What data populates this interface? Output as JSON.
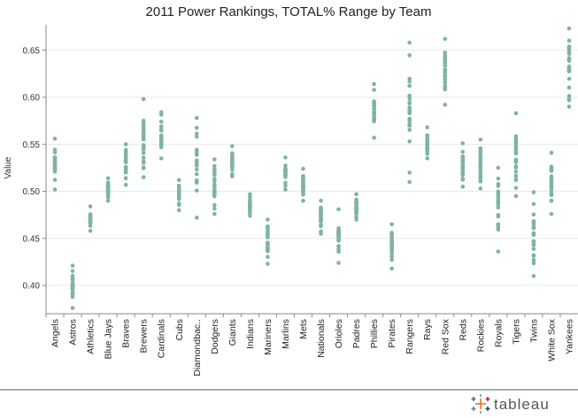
{
  "chart_data": {
    "type": "scatter",
    "title": "2011 Power Rankings, TOTAL% Range by Team",
    "ylabel": "Value",
    "xlabel": "",
    "ylim": [
      0.37,
      0.677
    ],
    "yticks": [
      0.4,
      0.45,
      0.5,
      0.55,
      0.6,
      0.65
    ],
    "ytick_labels": [
      "0.40",
      "0.45",
      "0.50",
      "0.55",
      "0.60",
      "0.65"
    ],
    "grid": "horizontal",
    "categories": [
      "Angels",
      "Astros",
      "Athletics",
      "Blue Jays",
      "Braves",
      "Brewers",
      "Cardinals",
      "Cubs",
      "Diamondbac..",
      "Dodgers",
      "Giants",
      "Indians",
      "Mariners",
      "Marlins",
      "Mets",
      "Nationals",
      "Orioles",
      "Padres",
      "Phillies",
      "Pirates",
      "Rangers",
      "Rays",
      "Red Sox",
      "Reds",
      "Rockies",
      "Royals",
      "Tigers",
      "Twins",
      "White Sox",
      "Yankees"
    ],
    "ranges": [
      [
        0.502,
        0.556
      ],
      [
        0.376,
        0.421
      ],
      [
        0.458,
        0.484
      ],
      [
        0.49,
        0.514
      ],
      [
        0.507,
        0.55
      ],
      [
        0.515,
        0.598
      ],
      [
        0.535,
        0.584
      ],
      [
        0.48,
        0.512
      ],
      [
        0.472,
        0.578
      ],
      [
        0.476,
        0.534
      ],
      [
        0.516,
        0.548
      ],
      [
        0.474,
        0.497
      ],
      [
        0.423,
        0.47
      ],
      [
        0.502,
        0.536
      ],
      [
        0.49,
        0.524
      ],
      [
        0.455,
        0.49
      ],
      [
        0.424,
        0.481
      ],
      [
        0.47,
        0.497
      ],
      [
        0.557,
        0.614
      ],
      [
        0.418,
        0.465
      ],
      [
        0.51,
        0.658
      ],
      [
        0.535,
        0.568
      ],
      [
        0.592,
        0.662
      ],
      [
        0.505,
        0.551
      ],
      [
        0.503,
        0.555
      ],
      [
        0.436,
        0.525
      ],
      [
        0.495,
        0.583
      ],
      [
        0.41,
        0.499
      ],
      [
        0.476,
        0.541
      ],
      [
        0.59,
        0.673
      ]
    ],
    "points_per_team": 26
  },
  "footer": {
    "brand": "tableau",
    "logo": "tableau-logo-icon"
  },
  "colors": {
    "dot": "#7fb3a3",
    "grid": "#e8e8e8",
    "axis": "#888888"
  }
}
